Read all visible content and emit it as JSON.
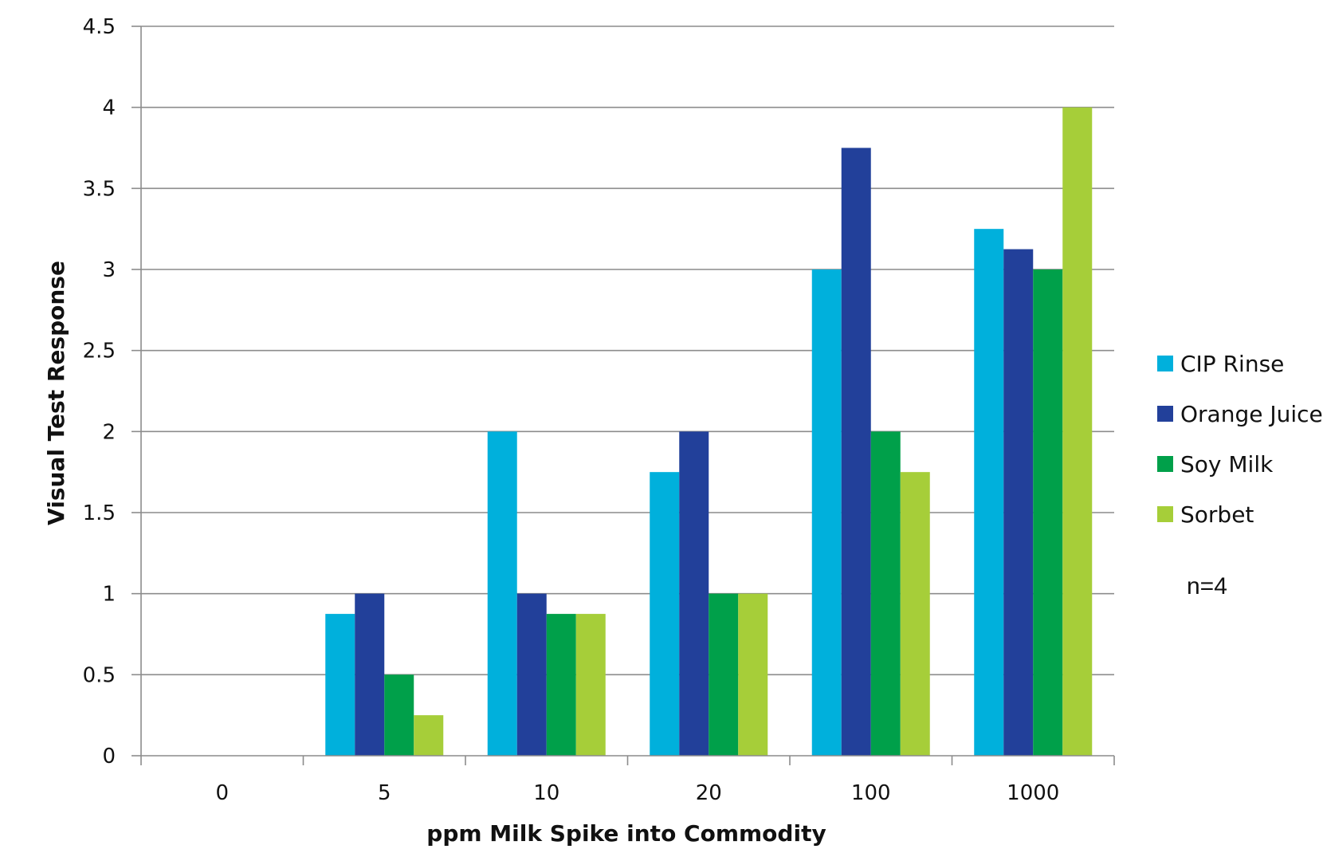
{
  "chart_data": {
    "type": "bar",
    "title": "",
    "xlabel": "ppm Milk Spike into Commodity",
    "ylabel": "Visual Test Response",
    "categories": [
      "0",
      "5",
      "10",
      "20",
      "100",
      "1000"
    ],
    "ylim": [
      0,
      4.5
    ],
    "yticks": [
      "0",
      "0.5",
      "1",
      "1.5",
      "2",
      "2.5",
      "3",
      "3.5",
      "4",
      "4.5"
    ],
    "ytick_values": [
      0,
      0.5,
      1,
      1.5,
      2,
      2.5,
      3,
      3.5,
      4,
      4.5
    ],
    "grid": true,
    "legend_position": "right",
    "series": [
      {
        "name": "CIP Rinse",
        "color": "#00b0dc",
        "values": [
          0,
          0.875,
          2,
          1.75,
          3,
          3.25
        ]
      },
      {
        "name": "Orange Juice",
        "color": "#22409a",
        "values": [
          0,
          1,
          1,
          2,
          3.75,
          3.125
        ]
      },
      {
        "name": "Soy Milk",
        "color": "#00a04a",
        "values": [
          0,
          0.5,
          0.875,
          1,
          2,
          3
        ]
      },
      {
        "name": "Sorbet",
        "color": "#a6ce39",
        "values": [
          0,
          0.25,
          0.875,
          1,
          1.75,
          4
        ]
      }
    ],
    "annotation": "n=4"
  }
}
